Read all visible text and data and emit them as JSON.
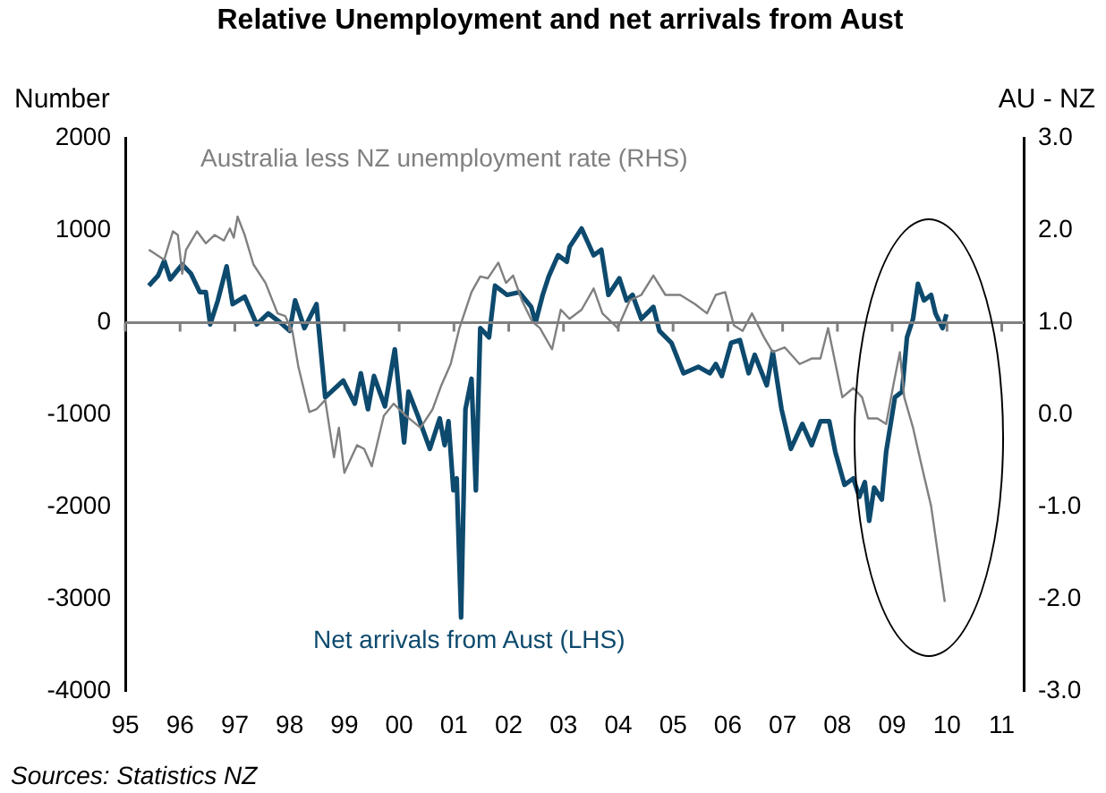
{
  "chart_data": {
    "type": "line",
    "title": "Relative Unemployment and net arrivals from Aust",
    "ylabel": "Number",
    "y2label": "AU - NZ",
    "annotations": [
      "Sources: Statistics NZ"
    ],
    "xlim": [
      1995,
      2011.4
    ],
    "xticks": [
      {
        "value": 1995,
        "label": "95"
      },
      {
        "value": 1996,
        "label": "96"
      },
      {
        "value": 1997,
        "label": "97"
      },
      {
        "value": 1998,
        "label": "98"
      },
      {
        "value": 1999,
        "label": "99"
      },
      {
        "value": 2000,
        "label": "00"
      },
      {
        "value": 2001,
        "label": "01"
      },
      {
        "value": 2002,
        "label": "02"
      },
      {
        "value": 2003,
        "label": "03"
      },
      {
        "value": 2004,
        "label": "04"
      },
      {
        "value": 2005,
        "label": "05"
      },
      {
        "value": 2006,
        "label": "06"
      },
      {
        "value": 2007,
        "label": "07"
      },
      {
        "value": 2008,
        "label": "08"
      },
      {
        "value": 2009,
        "label": "09"
      },
      {
        "value": 2010,
        "label": "10"
      },
      {
        "value": 2011,
        "label": "11"
      }
    ],
    "ylim": [
      -4000,
      2000
    ],
    "yticks": [
      -4000,
      -3000,
      -2000,
      -1000,
      0,
      1000,
      2000
    ],
    "y2lim": [
      -3,
      3
    ],
    "y2ticks": [
      {
        "value": -3,
        "label": "-3.0"
      },
      {
        "value": -2,
        "label": "-2.0"
      },
      {
        "value": -1,
        "label": "-1.0"
      },
      {
        "value": 0,
        "label": "0.0"
      },
      {
        "value": 1,
        "label": "1.0"
      },
      {
        "value": 2,
        "label": "2.0"
      },
      {
        "value": 3,
        "label": "3.0"
      }
    ],
    "ref_lines": [
      {
        "axis": "y",
        "value": 0,
        "color": "#808080"
      }
    ],
    "grid": false,
    "legend": false,
    "marker": "none",
    "line_style": "solid",
    "series": [
      {
        "name": "Australia less NZ unemployment rate (RHS)",
        "color": "#808080",
        "axis": "y2",
        "x": [
          1995.43,
          1995.71,
          1995.87,
          1995.96,
          1996.04,
          1996.11,
          1996.31,
          1996.47,
          1996.63,
          1996.8,
          1996.91,
          1996.98,
          1997.05,
          1997.18,
          1997.34,
          1997.56,
          1997.78,
          1997.92,
          1998.05,
          1998.16,
          1998.36,
          1998.49,
          1998.65,
          1998.81,
          1998.9,
          1999.0,
          1999.23,
          1999.36,
          1999.5,
          1999.72,
          1999.9,
          2000.12,
          2000.39,
          2000.61,
          2000.77,
          2000.94,
          2001.1,
          2001.32,
          2001.48,
          2001.62,
          2001.81,
          2001.95,
          2002.08,
          2002.24,
          2002.43,
          2002.57,
          2002.79,
          2002.95,
          2003.11,
          2003.33,
          2003.55,
          2003.71,
          2003.99,
          2004.21,
          2004.42,
          2004.64,
          2004.86,
          2005.13,
          2005.4,
          2005.62,
          2005.78,
          2005.95,
          2006.11,
          2006.27,
          2006.44,
          2006.66,
          2006.82,
          2007.04,
          2007.31,
          2007.53,
          2007.69,
          2007.83,
          2008.09,
          2008.29,
          2008.45,
          2008.56,
          2008.73,
          2008.89,
          2009.03,
          2009.14,
          2009.22,
          2009.38,
          2009.54,
          2009.71,
          2009.96
        ],
        "values": [
          1.79,
          1.68,
          1.99,
          1.95,
          1.53,
          1.79,
          1.99,
          1.86,
          1.95,
          1.89,
          2.02,
          1.92,
          2.15,
          1.95,
          1.63,
          1.43,
          1.1,
          1.07,
          0.91,
          0.52,
          0.03,
          0.06,
          0.16,
          -0.46,
          -0.14,
          -0.63,
          -0.33,
          -0.37,
          -0.56,
          -0.01,
          0.12,
          -0.01,
          -0.14,
          0.06,
          0.32,
          0.55,
          0.94,
          1.33,
          1.5,
          1.48,
          1.65,
          1.43,
          1.51,
          1.24,
          1.01,
          0.94,
          0.71,
          1.14,
          1.04,
          1.14,
          1.37,
          1.1,
          0.94,
          1.24,
          1.3,
          1.51,
          1.3,
          1.3,
          1.2,
          1.1,
          1.3,
          1.33,
          0.97,
          0.91,
          1.1,
          0.84,
          0.68,
          0.73,
          0.55,
          0.61,
          0.61,
          0.94,
          0.19,
          0.29,
          0.19,
          -0.04,
          -0.04,
          -0.1,
          0.35,
          0.68,
          0.19,
          -0.14,
          -0.56,
          -0.99,
          -2.03
        ]
      },
      {
        "name": "Net arrivals from Aust (LHS)",
        "color": "#0d4a6e",
        "x": [
          1995.43,
          1995.6,
          1995.71,
          1995.82,
          1996.04,
          1996.2,
          1996.36,
          1996.47,
          1996.55,
          1996.69,
          1996.85,
          1996.96,
          1997.18,
          1997.4,
          1997.61,
          1997.83,
          1998.0,
          1998.1,
          1998.27,
          1998.49,
          1998.65,
          1998.98,
          1999.19,
          1999.3,
          1999.43,
          1999.54,
          1999.74,
          1999.92,
          2000.09,
          2000.17,
          2000.34,
          2000.56,
          2000.74,
          2000.83,
          2000.9,
          2000.99,
          2001.05,
          2001.13,
          2001.21,
          2001.32,
          2001.4,
          2001.48,
          2001.64,
          2001.75,
          2001.97,
          2002.19,
          2002.41,
          2002.49,
          2002.62,
          2002.73,
          2002.9,
          2003.06,
          2003.11,
          2003.33,
          2003.55,
          2003.69,
          2003.82,
          2004.02,
          2004.15,
          2004.26,
          2004.42,
          2004.64,
          2004.75,
          2004.97,
          2005.19,
          2005.46,
          2005.67,
          2005.78,
          2005.89,
          2006.06,
          2006.22,
          2006.38,
          2006.49,
          2006.71,
          2006.82,
          2006.98,
          2007.15,
          2007.36,
          2007.53,
          2007.69,
          2007.85,
          2007.96,
          2008.13,
          2008.29,
          2008.4,
          2008.5,
          2008.58,
          2008.67,
          2008.81,
          2008.89,
          2009.05,
          2009.18,
          2009.27,
          2009.38,
          2009.47,
          2009.58,
          2009.71,
          2009.79,
          2009.92,
          2009.99
        ],
        "values": [
          400,
          510,
          670,
          470,
          630,
          530,
          330,
          330,
          -20,
          240,
          610,
          200,
          280,
          -20,
          100,
          0,
          -90,
          240,
          -60,
          200,
          -810,
          -630,
          -880,
          -550,
          -940,
          -580,
          -910,
          -290,
          -1300,
          -750,
          -1010,
          -1370,
          -1040,
          -1330,
          -1070,
          -1820,
          -1690,
          -3200,
          -940,
          -610,
          -1820,
          -60,
          -160,
          400,
          300,
          330,
          170,
          0,
          300,
          500,
          730,
          660,
          820,
          1020,
          730,
          790,
          300,
          480,
          240,
          300,
          40,
          170,
          -90,
          -220,
          -550,
          -480,
          -550,
          -450,
          -580,
          -220,
          -190,
          -550,
          -350,
          -680,
          -320,
          -940,
          -1370,
          -1100,
          -1330,
          -1070,
          -1070,
          -1400,
          -1760,
          -1690,
          -1890,
          -1730,
          -2150,
          -1790,
          -1920,
          -1400,
          -810,
          -750,
          -160,
          40,
          420,
          240,
          300,
          100,
          -60,
          90
        ]
      }
    ]
  }
}
